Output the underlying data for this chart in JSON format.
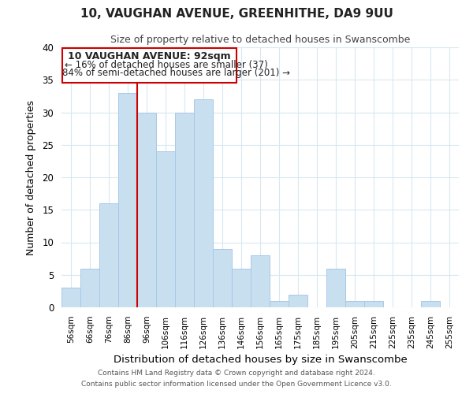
{
  "title": "10, VAUGHAN AVENUE, GREENHITHE, DA9 9UU",
  "subtitle": "Size of property relative to detached houses in Swanscombe",
  "xlabel": "Distribution of detached houses by size in Swanscombe",
  "ylabel": "Number of detached properties",
  "bar_color": "#c8dff0",
  "bar_edge_color": "#a8c8e8",
  "grid_color": "#d8e8f0",
  "background_color": "#ffffff",
  "bin_labels": [
    "56sqm",
    "66sqm",
    "76sqm",
    "86sqm",
    "96sqm",
    "106sqm",
    "116sqm",
    "126sqm",
    "136sqm",
    "146sqm",
    "156sqm",
    "165sqm",
    "175sqm",
    "185sqm",
    "195sqm",
    "205sqm",
    "215sqm",
    "225sqm",
    "235sqm",
    "245sqm",
    "255sqm"
  ],
  "bar_heights": [
    3,
    6,
    16,
    33,
    30,
    24,
    30,
    32,
    9,
    6,
    8,
    1,
    2,
    0,
    6,
    1,
    1,
    0,
    0,
    1,
    0
  ],
  "vline_color": "#cc0000",
  "ylim": [
    0,
    40
  ],
  "yticks": [
    0,
    5,
    10,
    15,
    20,
    25,
    30,
    35,
    40
  ],
  "annotation_title": "10 VAUGHAN AVENUE: 92sqm",
  "annotation_line1": "← 16% of detached houses are smaller (37)",
  "annotation_line2": "84% of semi-detached houses are larger (201) →",
  "annotation_box_color": "#ffffff",
  "annotation_box_edge": "#cc0000",
  "footer_line1": "Contains HM Land Registry data © Crown copyright and database right 2024.",
  "footer_line2": "Contains public sector information licensed under the Open Government Licence v3.0."
}
